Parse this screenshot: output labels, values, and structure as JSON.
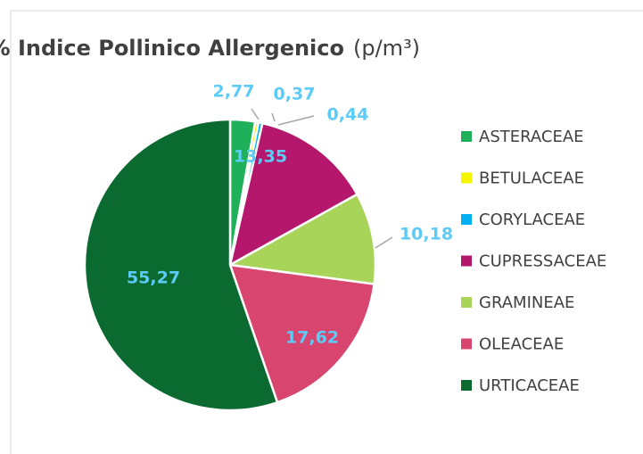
{
  "chart_data": {
    "type": "pie",
    "title": "% Indice Pollinico Allergenico",
    "title_unit": "(p/m³)",
    "categories": [
      "ASTERACEAE",
      "BETULACEAE",
      "CORYLACEAE",
      "CUPRESSACEAE",
      "GRAMINEAE",
      "OLEACEAE",
      "URTICACEAE"
    ],
    "values": [
      2.77,
      0.37,
      0.44,
      13.35,
      10.18,
      17.62,
      55.27
    ],
    "value_labels": [
      "2,77",
      "0,37",
      "0,44",
      "13,35",
      "10,18",
      "17,62",
      "55,27"
    ],
    "colors": [
      "#1fb15a",
      "#f5f500",
      "#00b0f0",
      "#b5176d",
      "#a8d45a",
      "#d8456f",
      "#0b6a30"
    ],
    "label_color": "#5ccbf6",
    "legend": "right"
  }
}
